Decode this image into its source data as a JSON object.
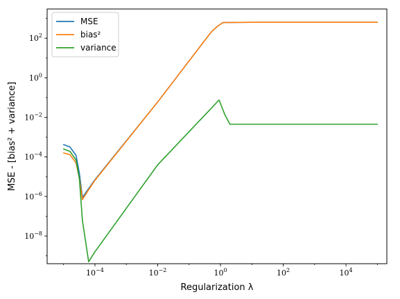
{
  "chart_data": {
    "type": "line",
    "xscale": "log",
    "yscale": "log",
    "xlim": [
      3e-06,
      200000.0
    ],
    "ylim": [
      4e-10,
      3000
    ],
    "xlabel": "Regularization λ",
    "ylabel": "MSE - [bias² + variance]",
    "grid": false,
    "legend": "top-left",
    "x_ticks": [
      {
        "base": "10",
        "exp": "−4",
        "value": 0.0001
      },
      {
        "base": "10",
        "exp": "−2",
        "value": 0.01
      },
      {
        "base": "10",
        "exp": "0",
        "value": 1
      },
      {
        "base": "10",
        "exp": "2",
        "value": 100
      },
      {
        "base": "10",
        "exp": "4",
        "value": 10000
      }
    ],
    "y_ticks": [
      {
        "base": "10",
        "exp": "−8",
        "value": 1e-08
      },
      {
        "base": "10",
        "exp": "−6",
        "value": 1e-06
      },
      {
        "base": "10",
        "exp": "−4",
        "value": 0.0001
      },
      {
        "base": "10",
        "exp": "−2",
        "value": 0.01
      },
      {
        "base": "10",
        "exp": "0",
        "value": 1
      },
      {
        "base": "10",
        "exp": "2",
        "value": 100
      }
    ],
    "series": [
      {
        "name": "MSE",
        "color": "#1f77b4",
        "points": [
          [
            1e-05,
            0.00042
          ],
          [
            1.6e-05,
            0.00032
          ],
          [
            2.5e-05,
            0.00012
          ],
          [
            3.2e-05,
            1.5e-05
          ],
          [
            4e-05,
            9e-07
          ],
          [
            6.3e-05,
            2.5e-06
          ],
          [
            0.0001,
            7e-06
          ],
          [
            0.01,
            0.06
          ],
          [
            0.5,
            200
          ],
          [
            0.8,
            400
          ],
          [
            1.2,
            620
          ],
          [
            10,
            640
          ],
          [
            100,
            640
          ],
          [
            100000.0,
            640
          ]
        ]
      },
      {
        "name": "bias²",
        "color": "#ff7f0e",
        "points": [
          [
            1e-05,
            0.00016
          ],
          [
            1.6e-05,
            0.00013
          ],
          [
            2.5e-05,
            5e-05
          ],
          [
            3.2e-05,
            8e-06
          ],
          [
            4e-05,
            7e-07
          ],
          [
            6.3e-05,
            2.2e-06
          ],
          [
            0.0001,
            6.5e-06
          ],
          [
            0.01,
            0.06
          ],
          [
            0.5,
            200
          ],
          [
            0.8,
            400
          ],
          [
            1.2,
            620
          ],
          [
            10,
            640
          ],
          [
            100,
            640
          ],
          [
            100000.0,
            640
          ]
        ]
      },
      {
        "name": "variance",
        "color": "#2ca02c",
        "points": [
          [
            1e-05,
            0.00025
          ],
          [
            1.6e-05,
            0.00019
          ],
          [
            2.5e-05,
            7e-05
          ],
          [
            3.2e-05,
            8e-06
          ],
          [
            4e-05,
            6e-08
          ],
          [
            6.3e-05,
            5e-10
          ],
          [
            0.0001,
            1.6e-09
          ],
          [
            0.01,
            4e-05
          ],
          [
            0.5,
            0.028
          ],
          [
            0.9,
            0.075
          ],
          [
            1.4,
            0.013
          ],
          [
            2,
            0.0045
          ],
          [
            10,
            0.0045
          ],
          [
            100000.0,
            0.0045
          ]
        ]
      }
    ]
  }
}
